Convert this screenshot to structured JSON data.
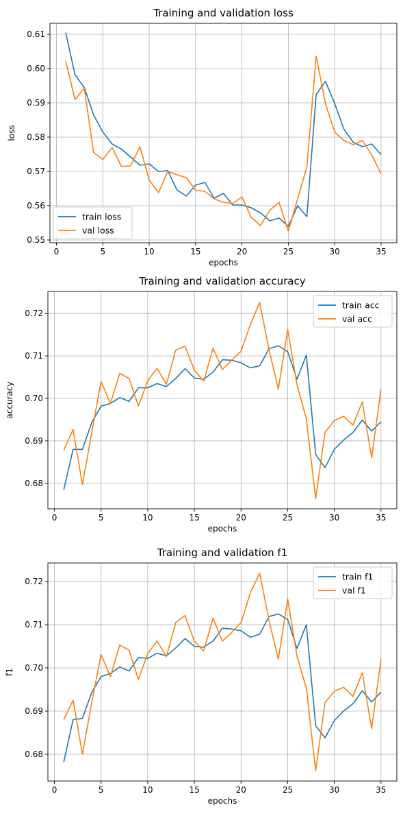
{
  "chart_data": [
    {
      "type": "line",
      "title": "Training and validation loss",
      "xlabel": "epochs",
      "ylabel": "loss",
      "xlim": [
        -0.7,
        36.7
      ],
      "ylim": [
        0.5492,
        0.6132
      ],
      "xticks": [
        0,
        5,
        10,
        15,
        20,
        25,
        30,
        35
      ],
      "xtick_labels": [
        "0",
        "5",
        "10",
        "15",
        "20",
        "25",
        "30",
        "35"
      ],
      "yticks": [
        0.55,
        0.56,
        0.57,
        0.58,
        0.59,
        0.6,
        0.61
      ],
      "ytick_labels": [
        "0.55",
        "0.56",
        "0.57",
        "0.58",
        "0.59",
        "0.60",
        "0.61"
      ],
      "grid": true,
      "legend": "lower-left",
      "x": [
        1,
        2,
        3,
        4,
        5,
        6,
        7,
        8,
        9,
        10,
        11,
        12,
        13,
        14,
        15,
        16,
        17,
        18,
        19,
        20,
        21,
        22,
        23,
        24,
        25,
        26,
        27,
        28,
        29,
        30,
        31,
        32,
        33,
        34,
        35
      ],
      "series": [
        {
          "name": "train loss",
          "color": "#1f77b4",
          "values": [
            0.6105,
            0.5982,
            0.5945,
            0.5865,
            0.5815,
            0.578,
            0.5765,
            0.5742,
            0.5718,
            0.5722,
            0.57,
            0.5702,
            0.5646,
            0.5628,
            0.566,
            0.5668,
            0.5622,
            0.5636,
            0.5602,
            0.5602,
            0.5594,
            0.5579,
            0.5556,
            0.5564,
            0.554,
            0.56,
            0.5568,
            0.5924,
            0.5963,
            0.5898,
            0.5823,
            0.5785,
            0.5772,
            0.578,
            0.5749
          ]
        },
        {
          "name": "val loss",
          "color": "#ff7f0e",
          "values": [
            0.6022,
            0.591,
            0.5943,
            0.5756,
            0.5735,
            0.577,
            0.5715,
            0.5716,
            0.5772,
            0.5675,
            0.5638,
            0.57,
            0.569,
            0.5682,
            0.5645,
            0.5642,
            0.562,
            0.561,
            0.5606,
            0.5626,
            0.5566,
            0.5542,
            0.5587,
            0.561,
            0.5526,
            0.562,
            0.5713,
            0.6036,
            0.5898,
            0.5815,
            0.579,
            0.5778,
            0.579,
            0.5748,
            0.5693
          ]
        }
      ]
    },
    {
      "type": "line",
      "title": "Training and validation accuracy",
      "xlabel": "epochs",
      "ylabel": "accuracy",
      "xlim": [
        -0.7,
        36.7
      ],
      "ylim": [
        0.674,
        0.7252
      ],
      "xticks": [
        0,
        5,
        10,
        15,
        20,
        25,
        30,
        35
      ],
      "xtick_labels": [
        "0",
        "5",
        "10",
        "15",
        "20",
        "25",
        "30",
        "35"
      ],
      "yticks": [
        0.68,
        0.69,
        0.7,
        0.71,
        0.72
      ],
      "ytick_labels": [
        "0.68",
        "0.69",
        "0.70",
        "0.71",
        "0.72"
      ],
      "grid": true,
      "legend": "upper-right",
      "x": [
        1,
        2,
        3,
        4,
        5,
        6,
        7,
        8,
        9,
        10,
        11,
        12,
        13,
        14,
        15,
        16,
        17,
        18,
        19,
        20,
        21,
        22,
        23,
        24,
        25,
        26,
        27,
        28,
        29,
        30,
        31,
        32,
        33,
        34,
        35
      ],
      "series": [
        {
          "name": "train acc",
          "color": "#1f77b4",
          "values": [
            0.6785,
            0.688,
            0.688,
            0.6943,
            0.6982,
            0.6988,
            0.7002,
            0.6993,
            0.7025,
            0.7025,
            0.7035,
            0.7028,
            0.7047,
            0.707,
            0.7048,
            0.7045,
            0.7062,
            0.7091,
            0.709,
            0.7084,
            0.7072,
            0.7077,
            0.7117,
            0.7124,
            0.711,
            0.7045,
            0.7102,
            0.6868,
            0.6837,
            0.688,
            0.6902,
            0.692,
            0.6949,
            0.6923,
            0.6945
          ]
        },
        {
          "name": "val acc",
          "color": "#ff7f0e",
          "values": [
            0.6878,
            0.6927,
            0.6797,
            0.692,
            0.704,
            0.6988,
            0.7059,
            0.7047,
            0.6982,
            0.7042,
            0.7071,
            0.7033,
            0.7114,
            0.7123,
            0.7066,
            0.7041,
            0.7118,
            0.7068,
            0.709,
            0.7111,
            0.7174,
            0.7226,
            0.7115,
            0.7022,
            0.7163,
            0.7032,
            0.6952,
            0.6764,
            0.692,
            0.6948,
            0.6958,
            0.6937,
            0.6992,
            0.686,
            0.7022
          ]
        }
      ]
    },
    {
      "type": "line",
      "title": "Training and validation f1",
      "xlabel": "epochs",
      "ylabel": "f1",
      "xlim": [
        -0.7,
        36.7
      ],
      "ylim": [
        0.6738,
        0.7243
      ],
      "xticks": [
        0,
        5,
        10,
        15,
        20,
        25,
        30,
        35
      ],
      "xtick_labels": [
        "0",
        "5",
        "10",
        "15",
        "20",
        "25",
        "30",
        "35"
      ],
      "yticks": [
        0.68,
        0.69,
        0.7,
        0.71,
        0.72
      ],
      "ytick_labels": [
        "0.68",
        "0.69",
        "0.70",
        "0.71",
        "0.72"
      ],
      "grid": true,
      "legend": "upper-right",
      "x": [
        1,
        2,
        3,
        4,
        5,
        6,
        7,
        8,
        9,
        10,
        11,
        12,
        13,
        14,
        15,
        16,
        17,
        18,
        19,
        20,
        21,
        22,
        23,
        24,
        25,
        26,
        27,
        28,
        29,
        30,
        31,
        32,
        33,
        34,
        35
      ],
      "series": [
        {
          "name": "train f1",
          "color": "#1f77b4",
          "values": [
            0.6782,
            0.688,
            0.6883,
            0.6943,
            0.698,
            0.6987,
            0.7002,
            0.6993,
            0.7024,
            0.7022,
            0.7034,
            0.7028,
            0.7046,
            0.7068,
            0.705,
            0.7048,
            0.7062,
            0.7092,
            0.709,
            0.7086,
            0.7071,
            0.7078,
            0.7119,
            0.7125,
            0.7112,
            0.7045,
            0.71,
            0.6866,
            0.6838,
            0.6878,
            0.69,
            0.6917,
            0.6947,
            0.6921,
            0.6944
          ]
        },
        {
          "name": "val f1",
          "color": "#ff7f0e",
          "values": [
            0.688,
            0.6925,
            0.68,
            0.692,
            0.7031,
            0.698,
            0.7053,
            0.7041,
            0.6973,
            0.7033,
            0.7062,
            0.7026,
            0.7105,
            0.7121,
            0.7062,
            0.7039,
            0.7115,
            0.7062,
            0.7082,
            0.7105,
            0.7174,
            0.7219,
            0.711,
            0.702,
            0.716,
            0.7027,
            0.6953,
            0.6762,
            0.692,
            0.6946,
            0.6955,
            0.6934,
            0.6989,
            0.6859,
            0.702
          ]
        }
      ]
    }
  ]
}
